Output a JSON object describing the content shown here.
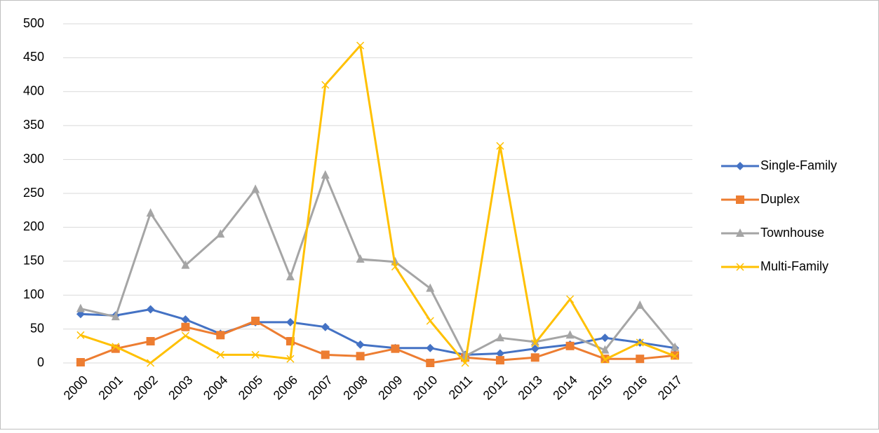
{
  "chart_data": {
    "type": "line",
    "categories": [
      "2000",
      "2001",
      "2002",
      "2003",
      "2004",
      "2005",
      "2006",
      "2007",
      "2008",
      "2009",
      "2010",
      "2011",
      "2012",
      "2013",
      "2014",
      "2015",
      "2016",
      "2017"
    ],
    "series": [
      {
        "name": "Single-Family",
        "color": "#4472c4",
        "marker": "diamond",
        "values": [
          72,
          70,
          79,
          64,
          43,
          60,
          60,
          53,
          27,
          22,
          22,
          12,
          14,
          21,
          27,
          37,
          30,
          22
        ]
      },
      {
        "name": "Duplex",
        "color": "#ed7d31",
        "marker": "square",
        "values": [
          1,
          21,
          32,
          53,
          41,
          62,
          32,
          12,
          10,
          21,
          0,
          8,
          4,
          8,
          25,
          6,
          6,
          11
        ]
      },
      {
        "name": "Townhouse",
        "color": "#a5a5a5",
        "marker": "triangle",
        "values": [
          80,
          68,
          221,
          144,
          190,
          256,
          127,
          277,
          153,
          149,
          110,
          10,
          37,
          31,
          41,
          19,
          85,
          23
        ]
      },
      {
        "name": "Multi-Family",
        "color": "#ffc000",
        "marker": "x",
        "values": [
          41,
          24,
          0,
          40,
          12,
          12,
          6,
          410,
          468,
          142,
          62,
          0,
          320,
          29,
          94,
          5,
          30,
          10
        ]
      }
    ],
    "ylim": [
      0,
      500
    ],
    "yticks": [
      0,
      50,
      100,
      150,
      200,
      250,
      300,
      350,
      400,
      450,
      500
    ],
    "grid": true,
    "legend": "right"
  }
}
